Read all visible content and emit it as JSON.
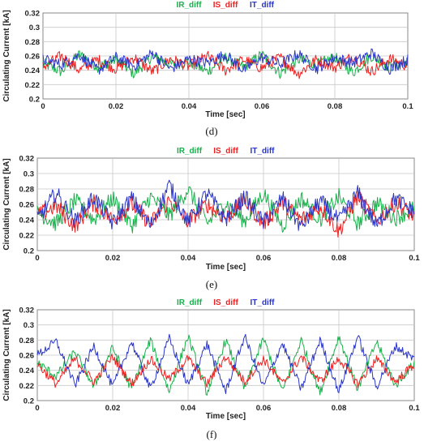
{
  "colors": {
    "IR_diff": "#18b04a",
    "IS_diff": "#ee2020",
    "IT_diff": "#2a36c8"
  },
  "chart_data": [
    {
      "panel": "d",
      "caption": "(d)",
      "type": "line",
      "legend": [
        "IR_diff",
        "IS_diff",
        "IT_diff"
      ],
      "legend_position": "top-center",
      "xlabel": "Time [sec]",
      "ylabel": "Circulating Current [kA]",
      "xlim": [
        0,
        0.1
      ],
      "ylim": [
        0.2,
        0.32
      ],
      "xticks": [
        0,
        0.02,
        0.04,
        0.06,
        0.08,
        0.1
      ],
      "xtick_labels": [
        "0",
        "0.02",
        "0.04",
        "0.06",
        "0.08",
        "0.1"
      ],
      "yticks": [
        0.2,
        0.22,
        0.24,
        0.26,
        0.28,
        0.3,
        0.32
      ],
      "ytick_labels": [
        "0.2",
        "0.22",
        "0.24",
        "0.26",
        "0.28",
        "0.3",
        "0.32"
      ],
      "grid": true,
      "series": [
        {
          "name": "IR_diff",
          "color": "#18b04a",
          "x": [
            0,
            0.005,
            0.01,
            0.015,
            0.02,
            0.025,
            0.03,
            0.035,
            0.04,
            0.045,
            0.05,
            0.055,
            0.06,
            0.065,
            0.07,
            0.075,
            0.08,
            0.085,
            0.09,
            0.095,
            0.1
          ],
          "y": [
            0.25,
            0.238,
            0.262,
            0.245,
            0.255,
            0.235,
            0.26,
            0.248,
            0.252,
            0.238,
            0.258,
            0.244,
            0.262,
            0.236,
            0.255,
            0.248,
            0.258,
            0.237,
            0.26,
            0.245,
            0.252
          ]
        },
        {
          "name": "IS_diff",
          "color": "#ee2020",
          "x": [
            0,
            0.005,
            0.01,
            0.015,
            0.02,
            0.025,
            0.03,
            0.035,
            0.04,
            0.045,
            0.05,
            0.055,
            0.06,
            0.065,
            0.07,
            0.075,
            0.08,
            0.085,
            0.09,
            0.095,
            0.1
          ],
          "y": [
            0.245,
            0.26,
            0.24,
            0.255,
            0.242,
            0.258,
            0.238,
            0.256,
            0.245,
            0.26,
            0.24,
            0.255,
            0.243,
            0.258,
            0.235,
            0.255,
            0.244,
            0.26,
            0.238,
            0.256,
            0.246
          ]
        },
        {
          "name": "IT_diff",
          "color": "#2a36c8",
          "x": [
            0,
            0.005,
            0.01,
            0.015,
            0.02,
            0.025,
            0.03,
            0.035,
            0.04,
            0.045,
            0.05,
            0.055,
            0.06,
            0.065,
            0.07,
            0.075,
            0.08,
            0.085,
            0.09,
            0.095,
            0.1
          ],
          "y": [
            0.255,
            0.248,
            0.262,
            0.24,
            0.258,
            0.246,
            0.264,
            0.242,
            0.256,
            0.25,
            0.262,
            0.24,
            0.258,
            0.248,
            0.263,
            0.242,
            0.258,
            0.25,
            0.264,
            0.242,
            0.255
          ]
        }
      ]
    },
    {
      "panel": "e",
      "caption": "(e)",
      "type": "line",
      "legend": [
        "IR_diff",
        "IS_diff",
        "IT_diff"
      ],
      "legend_position": "top-center",
      "xlabel": "Time [sec]",
      "ylabel": "Circulating Current [kA]",
      "xlim": [
        0,
        0.1
      ],
      "ylim": [
        0.2,
        0.32
      ],
      "xticks": [
        0,
        0.02,
        0.04,
        0.06,
        0.08,
        0.1
      ],
      "xtick_labels": [
        "0",
        "0.02",
        "0.04",
        "0.06",
        "0.08",
        "0.1"
      ],
      "yticks": [
        0.2,
        0.22,
        0.24,
        0.26,
        0.28,
        0.3,
        0.32
      ],
      "ytick_labels": [
        "0.2",
        "0.22",
        "0.24",
        "0.26",
        "0.28",
        "0.3",
        "0.32"
      ],
      "grid": true,
      "series": [
        {
          "name": "IR_diff",
          "color": "#18b04a",
          "x": [
            0,
            0.005,
            0.01,
            0.015,
            0.02,
            0.025,
            0.03,
            0.035,
            0.04,
            0.045,
            0.05,
            0.055,
            0.06,
            0.065,
            0.07,
            0.075,
            0.08,
            0.085,
            0.09,
            0.095,
            0.1
          ],
          "y": [
            0.25,
            0.235,
            0.265,
            0.24,
            0.268,
            0.232,
            0.27,
            0.245,
            0.28,
            0.235,
            0.262,
            0.238,
            0.275,
            0.232,
            0.268,
            0.24,
            0.27,
            0.235,
            0.262,
            0.242,
            0.255
          ]
        },
        {
          "name": "IS_diff",
          "color": "#ee2020",
          "x": [
            0,
            0.005,
            0.01,
            0.015,
            0.02,
            0.025,
            0.03,
            0.035,
            0.04,
            0.045,
            0.05,
            0.055,
            0.06,
            0.065,
            0.07,
            0.075,
            0.08,
            0.085,
            0.09,
            0.095,
            0.1
          ],
          "y": [
            0.245,
            0.258,
            0.232,
            0.262,
            0.24,
            0.26,
            0.235,
            0.265,
            0.238,
            0.26,
            0.242,
            0.265,
            0.235,
            0.262,
            0.24,
            0.258,
            0.225,
            0.27,
            0.238,
            0.262,
            0.245
          ]
        },
        {
          "name": "IT_diff",
          "color": "#2a36c8",
          "x": [
            0,
            0.005,
            0.01,
            0.015,
            0.02,
            0.025,
            0.03,
            0.035,
            0.04,
            0.045,
            0.05,
            0.055,
            0.06,
            0.065,
            0.07,
            0.075,
            0.08,
            0.085,
            0.09,
            0.095,
            0.1
          ],
          "y": [
            0.24,
            0.275,
            0.238,
            0.27,
            0.235,
            0.268,
            0.232,
            0.285,
            0.236,
            0.275,
            0.24,
            0.27,
            0.236,
            0.268,
            0.23,
            0.265,
            0.238,
            0.275,
            0.232,
            0.268,
            0.25
          ]
        }
      ]
    },
    {
      "panel": "f",
      "caption": "(f)",
      "type": "line",
      "legend": [
        "IR_diff",
        "IS_diff",
        "IT_diff"
      ],
      "legend_position": "top-center",
      "xlabel": "Time [sec]",
      "ylabel": "Circulating Current [kA]",
      "xlim": [
        0,
        0.1
      ],
      "ylim": [
        0.2,
        0.32
      ],
      "xticks": [
        0,
        0.02,
        0.04,
        0.06,
        0.08,
        0.1
      ],
      "xtick_labels": [
        "0",
        "0.02",
        "0.04",
        "0.06",
        "0.08",
        "0.1"
      ],
      "yticks": [
        0.2,
        0.22,
        0.24,
        0.26,
        0.28,
        0.3,
        0.32
      ],
      "ytick_labels": [
        "0.2",
        "0.22",
        "0.24",
        "0.26",
        "0.28",
        "0.3",
        "0.32"
      ],
      "grid": true,
      "series": [
        {
          "name": "IR_diff",
          "color": "#18b04a",
          "x": [
            0,
            0.005,
            0.01,
            0.015,
            0.02,
            0.025,
            0.03,
            0.035,
            0.04,
            0.045,
            0.05,
            0.055,
            0.06,
            0.065,
            0.07,
            0.075,
            0.08,
            0.085,
            0.09,
            0.095,
            0.1
          ],
          "y": [
            0.25,
            0.232,
            0.265,
            0.218,
            0.27,
            0.215,
            0.28,
            0.212,
            0.285,
            0.21,
            0.28,
            0.215,
            0.282,
            0.212,
            0.28,
            0.21,
            0.285,
            0.215,
            0.278,
            0.22,
            0.25
          ]
        },
        {
          "name": "IS_diff",
          "color": "#ee2020",
          "x": [
            0,
            0.005,
            0.01,
            0.015,
            0.02,
            0.025,
            0.03,
            0.035,
            0.04,
            0.045,
            0.05,
            0.055,
            0.06,
            0.065,
            0.07,
            0.075,
            0.08,
            0.085,
            0.09,
            0.095,
            0.1
          ],
          "y": [
            0.248,
            0.222,
            0.255,
            0.225,
            0.258,
            0.222,
            0.255,
            0.228,
            0.256,
            0.222,
            0.258,
            0.225,
            0.255,
            0.222,
            0.258,
            0.225,
            0.256,
            0.222,
            0.255,
            0.225,
            0.248
          ]
        },
        {
          "name": "IT_diff",
          "color": "#2a36c8",
          "x": [
            0,
            0.005,
            0.01,
            0.015,
            0.02,
            0.025,
            0.03,
            0.035,
            0.04,
            0.045,
            0.05,
            0.055,
            0.06,
            0.065,
            0.07,
            0.075,
            0.08,
            0.085,
            0.09,
            0.095,
            0.1
          ],
          "y": [
            0.26,
            0.278,
            0.22,
            0.272,
            0.218,
            0.278,
            0.215,
            0.282,
            0.22,
            0.275,
            0.212,
            0.285,
            0.218,
            0.276,
            0.215,
            0.28,
            0.212,
            0.285,
            0.218,
            0.272,
            0.255
          ]
        }
      ]
    }
  ]
}
